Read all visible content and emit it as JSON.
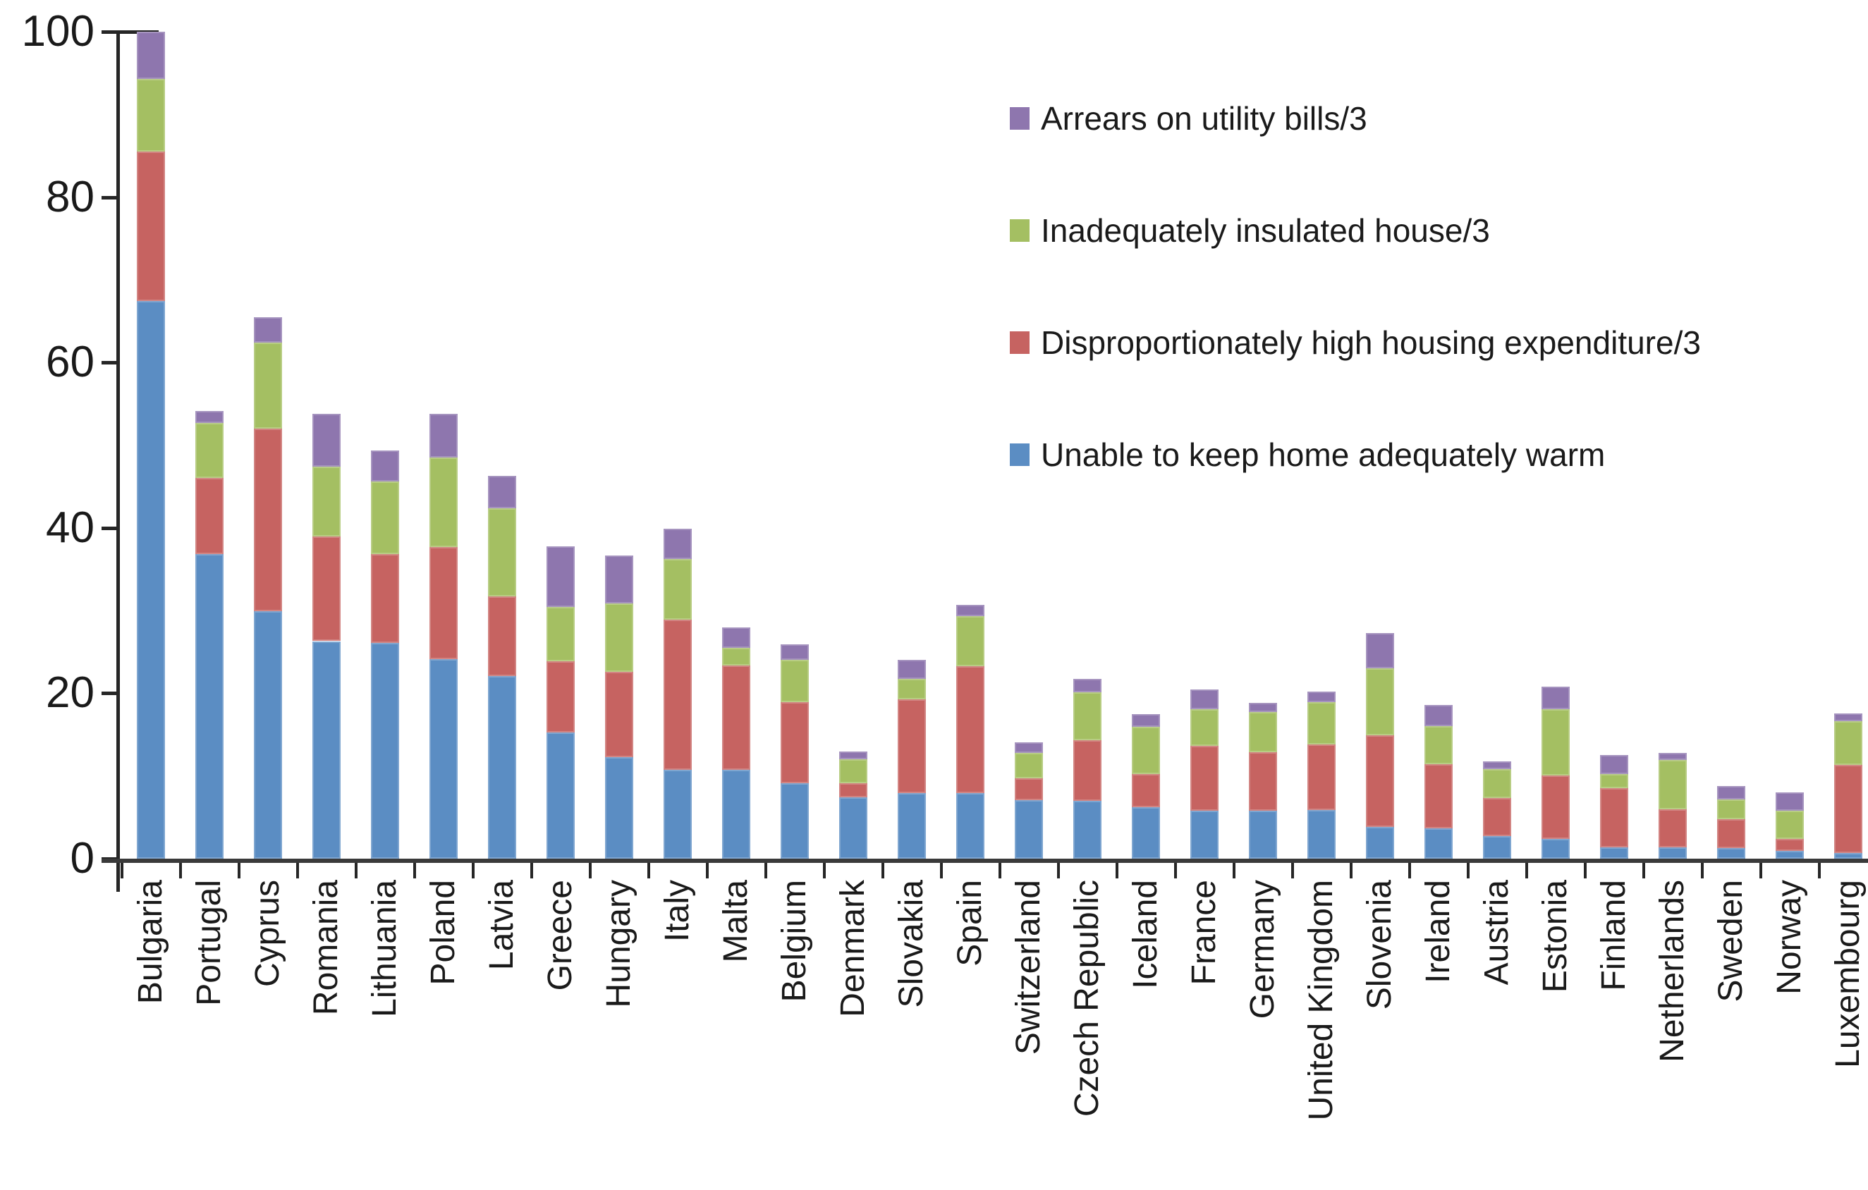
{
  "chart_data": {
    "type": "bar",
    "stacked": true,
    "title": "",
    "xlabel": "",
    "ylabel": "",
    "ylim": [
      0,
      100
    ],
    "grid": false,
    "legend_position": "upper-right",
    "y_axis": {
      "ticks": [
        0,
        20,
        40,
        60,
        80,
        100
      ],
      "tick_labels": [
        "0",
        "20",
        "40",
        "60",
        "80",
        "100"
      ]
    },
    "categories": [
      "Bulgaria",
      "Portugal",
      "Cyprus",
      "Romania",
      "Lithuania",
      "Poland",
      "Latvia",
      "Greece",
      "Hungary",
      "Italy",
      "Malta",
      "Belgium",
      "Denmark",
      "Slovakia",
      "Spain",
      "Switzerland",
      "Czech Republic",
      "Iceland",
      "France",
      "Germany",
      "United Kingdom",
      "Slovenia",
      "Ireland",
      "Austria",
      "Estonia",
      "Finland",
      "Netherlands",
      "Sweden",
      "Norway",
      "Luxembourg"
    ],
    "series": [
      {
        "name": "Unable to keep home adequately warm",
        "color": "#5B8DC3",
        "values": [
          67.4,
          36.8,
          29.9,
          26.3,
          26.1,
          24.1,
          22.1,
          15.3,
          12.3,
          10.7,
          10.7,
          9.1,
          7.4,
          7.9,
          7.9,
          7.1,
          7.0,
          6.2,
          5.8,
          5.8,
          5.9,
          3.8,
          3.7,
          2.7,
          2.4,
          1.4,
          1.4,
          1.3,
          0.9,
          0.7
        ]
      },
      {
        "name": "Disproportionately high housing expenditure/3",
        "color": "#C66361",
        "values": [
          18.1,
          9.2,
          22.1,
          12.7,
          10.7,
          13.6,
          9.6,
          8.6,
          10.3,
          18.2,
          12.7,
          9.8,
          1.7,
          11.4,
          15.4,
          2.6,
          7.3,
          4.0,
          7.8,
          7.1,
          7.9,
          11.1,
          7.7,
          4.6,
          7.7,
          7.1,
          4.6,
          3.5,
          1.5,
          10.6
        ]
      },
      {
        "name": "Inadequately insulated house/3",
        "color": "#A4BF62",
        "values": [
          8.8,
          6.7,
          10.4,
          8.4,
          8.8,
          10.8,
          10.7,
          6.5,
          8.3,
          7.3,
          2.1,
          5.1,
          2.9,
          2.4,
          6.0,
          3.1,
          5.8,
          5.7,
          4.5,
          4.8,
          5.1,
          8.1,
          4.6,
          3.5,
          8.0,
          1.7,
          5.9,
          2.4,
          3.4,
          5.3
        ]
      },
      {
        "name": "Arrears on utility bills/3",
        "color": "#8E76AE",
        "values": [
          5.7,
          1.4,
          3.1,
          6.4,
          3.8,
          5.3,
          3.9,
          7.4,
          5.8,
          3.7,
          2.5,
          1.9,
          1.0,
          2.3,
          1.4,
          1.3,
          1.6,
          1.6,
          2.4,
          1.1,
          1.3,
          4.3,
          2.6,
          1.0,
          2.7,
          2.3,
          0.9,
          1.6,
          2.2,
          1.0
        ]
      }
    ],
    "legend": {
      "items": [
        {
          "label": "Arrears on utility bills/3",
          "color": "#8E76AE"
        },
        {
          "label": "Inadequately insulated house/3",
          "color": "#A4BF62"
        },
        {
          "label": "Disproportionately high housing expenditure/3",
          "color": "#C66361"
        },
        {
          "label": "Unable to keep home adequately warm",
          "color": "#5B8DC3"
        }
      ]
    }
  },
  "colors": {
    "axis": "#262626",
    "baseline": "#3a3a3a",
    "text": "#1a1a1a",
    "background": "#ffffff"
  }
}
